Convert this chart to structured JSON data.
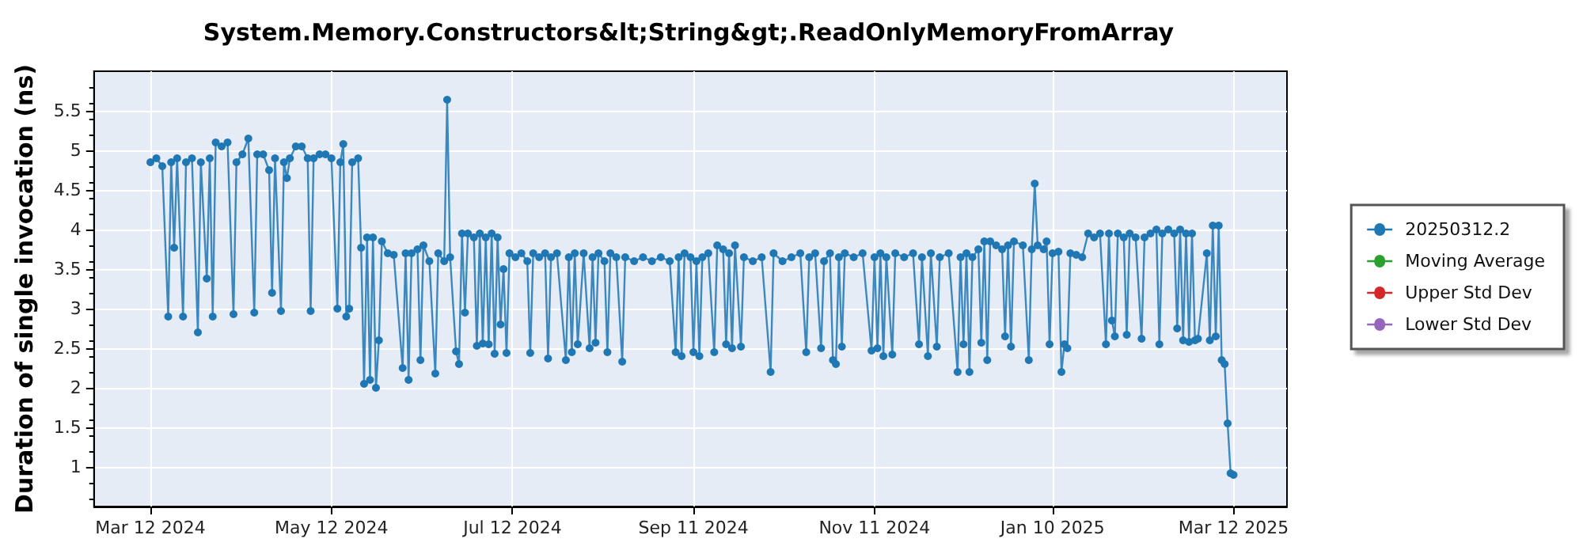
{
  "chart_data": {
    "type": "line",
    "title": "System.Memory.Constructors&lt;String&gt;.ReadOnlyMemoryFromArray",
    "ylabel": "Duration of single invocation (ns)",
    "xlim": [
      "2024-02-22",
      "2025-03-30"
    ],
    "xticks": [
      {
        "value": "2024-03-12",
        "label": "Mar 12 2024"
      },
      {
        "value": "2024-05-12",
        "label": "May 12 2024"
      },
      {
        "value": "2024-07-12",
        "label": "Jul 12 2024"
      },
      {
        "value": "2024-09-11",
        "label": "Sep 11 2024"
      },
      {
        "value": "2024-11-11",
        "label": "Nov 11 2024"
      },
      {
        "value": "2025-01-10",
        "label": "Jan 10 2025"
      },
      {
        "value": "2025-03-12",
        "label": "Mar 12 2025"
      }
    ],
    "ylim": [
      0.5,
      6
    ],
    "yticks": [
      1,
      1.5,
      2,
      2.5,
      3,
      3.5,
      4,
      4.5,
      5,
      5.5
    ],
    "grid": true,
    "legend": "right",
    "marker": "circle",
    "line_style": "solid",
    "series": [
      {
        "name": "20250312.2",
        "color": "#1f77b4",
        "x": [
          "2024-03-12",
          "2024-03-14",
          "2024-03-16",
          "2024-03-18",
          "2024-03-19",
          "2024-03-20",
          "2024-03-21",
          "2024-03-23",
          "2024-03-24",
          "2024-03-26",
          "2024-03-28",
          "2024-03-29",
          "2024-03-31",
          "2024-04-01",
          "2024-04-02",
          "2024-04-03",
          "2024-04-05",
          "2024-04-07",
          "2024-04-09",
          "2024-04-10",
          "2024-04-12",
          "2024-04-14",
          "2024-04-16",
          "2024-04-17",
          "2024-04-19",
          "2024-04-21",
          "2024-04-22",
          "2024-04-23",
          "2024-04-25",
          "2024-04-26",
          "2024-04-27",
          "2024-04-28",
          "2024-04-30",
          "2024-05-02",
          "2024-05-04",
          "2024-05-05",
          "2024-05-06",
          "2024-05-08",
          "2024-05-10",
          "2024-05-12",
          "2024-05-14",
          "2024-05-15",
          "2024-05-16",
          "2024-05-17",
          "2024-05-18",
          "2024-05-19",
          "2024-05-21",
          "2024-05-22",
          "2024-05-23",
          "2024-05-24",
          "2024-05-25",
          "2024-05-26",
          "2024-05-27",
          "2024-05-28",
          "2024-05-29",
          "2024-05-31",
          "2024-06-02",
          "2024-06-05",
          "2024-06-06",
          "2024-06-07",
          "2024-06-08",
          "2024-06-10",
          "2024-06-11",
          "2024-06-12",
          "2024-06-14",
          "2024-06-16",
          "2024-06-17",
          "2024-06-19",
          "2024-06-20",
          "2024-06-21",
          "2024-06-23",
          "2024-06-24",
          "2024-06-25",
          "2024-06-26",
          "2024-06-27",
          "2024-06-29",
          "2024-06-30",
          "2024-07-01",
          "2024-07-02",
          "2024-07-03",
          "2024-07-04",
          "2024-07-05",
          "2024-07-06",
          "2024-07-07",
          "2024-07-08",
          "2024-07-09",
          "2024-07-10",
          "2024-07-11",
          "2024-07-13",
          "2024-07-15",
          "2024-07-17",
          "2024-07-18",
          "2024-07-19",
          "2024-07-21",
          "2024-07-23",
          "2024-07-24",
          "2024-07-25",
          "2024-07-27",
          "2024-07-30",
          "2024-07-31",
          "2024-08-01",
          "2024-08-02",
          "2024-08-03",
          "2024-08-05",
          "2024-08-07",
          "2024-08-08",
          "2024-08-09",
          "2024-08-10",
          "2024-08-12",
          "2024-08-13",
          "2024-08-14",
          "2024-08-16",
          "2024-08-18",
          "2024-08-19",
          "2024-08-22",
          "2024-08-25",
          "2024-08-28",
          "2024-08-31",
          "2024-09-03",
          "2024-09-05",
          "2024-09-06",
          "2024-09-07",
          "2024-09-08",
          "2024-09-10",
          "2024-09-11",
          "2024-09-12",
          "2024-09-13",
          "2024-09-14",
          "2024-09-16",
          "2024-09-18",
          "2024-09-19",
          "2024-09-21",
          "2024-09-22",
          "2024-09-23",
          "2024-09-24",
          "2024-09-25",
          "2024-09-27",
          "2024-09-28",
          "2024-10-01",
          "2024-10-04",
          "2024-10-07",
          "2024-10-08",
          "2024-10-11",
          "2024-10-14",
          "2024-10-17",
          "2024-10-19",
          "2024-10-20",
          "2024-10-22",
          "2024-10-24",
          "2024-10-25",
          "2024-10-27",
          "2024-10-28",
          "2024-10-29",
          "2024-10-30",
          "2024-10-31",
          "2024-11-01",
          "2024-11-04",
          "2024-11-07",
          "2024-11-10",
          "2024-11-11",
          "2024-11-12",
          "2024-11-13",
          "2024-11-14",
          "2024-11-15",
          "2024-11-17",
          "2024-11-18",
          "2024-11-21",
          "2024-11-24",
          "2024-11-26",
          "2024-11-27",
          "2024-11-29",
          "2024-11-30",
          "2024-12-02",
          "2024-12-03",
          "2024-12-06",
          "2024-12-09",
          "2024-12-10",
          "2024-12-11",
          "2024-12-12",
          "2024-12-13",
          "2024-12-14",
          "2024-12-16",
          "2024-12-17",
          "2024-12-18",
          "2024-12-19",
          "2024-12-20",
          "2024-12-22",
          "2024-12-24",
          "2024-12-25",
          "2024-12-26",
          "2024-12-27",
          "2024-12-28",
          "2024-12-31",
          "2025-01-02",
          "2025-01-03",
          "2025-01-04",
          "2025-01-05",
          "2025-01-07",
          "2025-01-08",
          "2025-01-09",
          "2025-01-10",
          "2025-01-12",
          "2025-01-13",
          "2025-01-14",
          "2025-01-15",
          "2025-01-16",
          "2025-01-18",
          "2025-01-20",
          "2025-01-22",
          "2025-01-24",
          "2025-01-26",
          "2025-01-28",
          "2025-01-29",
          "2025-01-30",
          "2025-01-31",
          "2025-02-01",
          "2025-02-03",
          "2025-02-04",
          "2025-02-05",
          "2025-02-07",
          "2025-02-09",
          "2025-02-10",
          "2025-02-12",
          "2025-02-14",
          "2025-02-15",
          "2025-02-16",
          "2025-02-18",
          "2025-02-20",
          "2025-02-21",
          "2025-02-22",
          "2025-02-23",
          "2025-02-24",
          "2025-02-25",
          "2025-02-26",
          "2025-02-27",
          "2025-02-28",
          "2025-03-03",
          "2025-03-04",
          "2025-03-05",
          "2025-03-06",
          "2025-03-07",
          "2025-03-08",
          "2025-03-09",
          "2025-03-10",
          "2025-03-11",
          "2025-03-12"
        ],
        "values": [
          4.85,
          4.9,
          4.8,
          2.9,
          4.85,
          3.77,
          4.9,
          2.9,
          4.85,
          4.9,
          2.7,
          4.85,
          3.38,
          4.9,
          2.9,
          5.1,
          5.05,
          5.1,
          2.93,
          4.85,
          4.95,
          5.15,
          2.95,
          4.95,
          4.95,
          4.75,
          3.2,
          4.9,
          2.97,
          4.85,
          4.65,
          4.9,
          5.05,
          5.05,
          4.9,
          2.97,
          4.9,
          4.95,
          4.95,
          4.9,
          3.0,
          4.85,
          5.08,
          2.9,
          3.0,
          4.85,
          4.9,
          3.77,
          2.05,
          3.9,
          2.1,
          3.9,
          2.0,
          2.6,
          3.85,
          3.7,
          3.68,
          2.25,
          3.7,
          2.1,
          3.7,
          3.75,
          2.35,
          3.8,
          3.6,
          2.18,
          3.7,
          3.6,
          5.64,
          3.65,
          2.46,
          2.3,
          3.95,
          2.95,
          3.95,
          3.9,
          2.53,
          3.95,
          2.56,
          3.9,
          2.55,
          3.95,
          2.43,
          3.9,
          2.8,
          3.5,
          2.44,
          3.7,
          3.65,
          3.7,
          3.6,
          2.44,
          3.7,
          3.65,
          3.7,
          2.37,
          3.65,
          3.7,
          2.35,
          3.65,
          2.45,
          3.7,
          2.55,
          3.7,
          2.5,
          3.65,
          2.57,
          3.7,
          3.6,
          2.45,
          3.7,
          3.65,
          2.33,
          3.65,
          3.6,
          3.65,
          3.6,
          3.65,
          3.6,
          2.45,
          3.65,
          2.4,
          3.7,
          3.65,
          2.45,
          3.6,
          2.4,
          3.65,
          3.7,
          2.45,
          3.8,
          3.75,
          2.55,
          3.7,
          2.5,
          3.8,
          2.52,
          3.65,
          3.6,
          3.65,
          2.2,
          3.7,
          3.6,
          3.65,
          3.7,
          2.45,
          3.65,
          3.7,
          2.5,
          3.6,
          3.7,
          2.35,
          2.3,
          3.65,
          2.52,
          3.7,
          3.65,
          3.7,
          2.47,
          3.65,
          2.5,
          3.7,
          2.4,
          3.65,
          2.42,
          3.7,
          3.65,
          3.7,
          2.55,
          3.65,
          2.4,
          3.7,
          2.52,
          3.65,
          3.7,
          2.2,
          3.65,
          2.55,
          3.7,
          2.2,
          3.65,
          3.75,
          2.57,
          3.85,
          2.35,
          3.85,
          3.8,
          3.75,
          2.65,
          3.8,
          2.52,
          3.85,
          3.8,
          2.35,
          3.75,
          4.58,
          3.8,
          3.75,
          3.85,
          2.55,
          3.7,
          3.72,
          2.2,
          2.55,
          2.5,
          3.7,
          3.68,
          3.65,
          3.95,
          3.9,
          3.95,
          2.55,
          3.95,
          2.85,
          2.65,
          3.95,
          3.9,
          2.67,
          3.95,
          3.9,
          2.62,
          3.9,
          3.95,
          4.0,
          2.55,
          3.95,
          4.0,
          3.95,
          2.75,
          4.0,
          2.6,
          3.95,
          2.58,
          3.95,
          2.6,
          2.62,
          3.7,
          2.6,
          4.05,
          2.65,
          4.05,
          2.35,
          2.3,
          1.55,
          0.92,
          0.9
        ]
      },
      {
        "name": "Moving Average",
        "color": "#2ca02c"
      },
      {
        "name": "Upper Std Dev",
        "color": "#d62728"
      },
      {
        "name": "Lower Std Dev",
        "color": "#9467bd"
      }
    ]
  }
}
